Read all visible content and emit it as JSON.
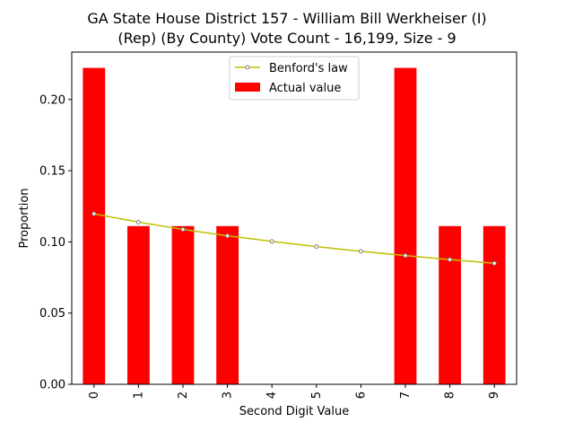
{
  "chart_data": {
    "type": "bar",
    "title_line1": "GA State House District 157 - William Bill Werkheiser (I)",
    "title_line2": "(Rep) (By County) Vote Count - 16,199, Size - 9",
    "xlabel": "Second Digit Value",
    "ylabel": "Proportion",
    "categories": [
      "0",
      "1",
      "2",
      "3",
      "4",
      "5",
      "6",
      "7",
      "8",
      "9"
    ],
    "ylim": [
      0,
      0.2333
    ],
    "yticks": [
      "0.00",
      "0.05",
      "0.10",
      "0.15",
      "0.20"
    ],
    "ytick_values": [
      0,
      0.05,
      0.1,
      0.15,
      0.2
    ],
    "series": [
      {
        "name": "Actual value",
        "kind": "bar",
        "color": "#ff0000",
        "values": [
          0.2222,
          0.1111,
          0.1111,
          0.1111,
          0,
          0,
          0,
          0.2222,
          0.1111,
          0.1111
        ]
      },
      {
        "name": "Benford's law",
        "kind": "line",
        "color": "#bfbf00",
        "values": [
          0.1197,
          0.1139,
          0.1088,
          0.1043,
          0.1003,
          0.0967,
          0.0934,
          0.0904,
          0.0876,
          0.085
        ]
      }
    ],
    "legend_position": "upper center",
    "grid": false
  }
}
